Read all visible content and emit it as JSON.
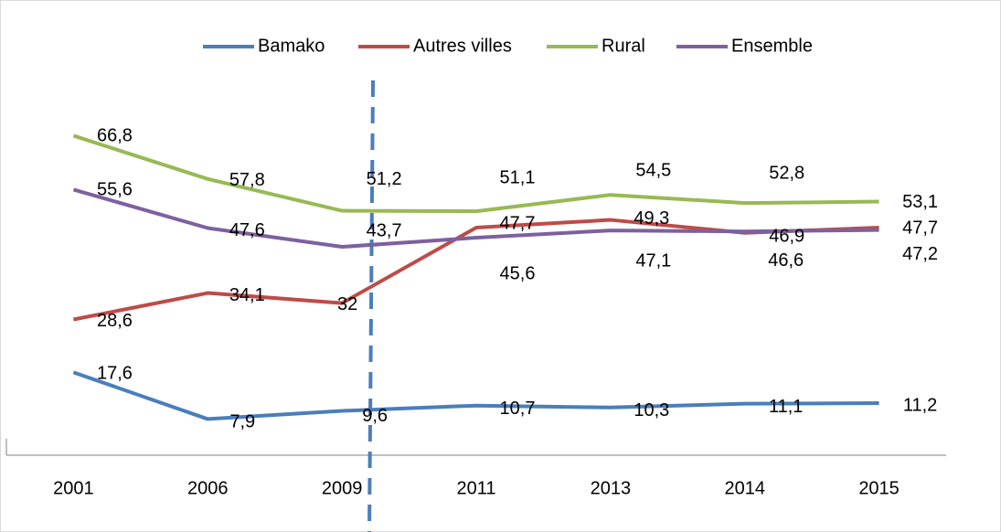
{
  "chart_data": {
    "type": "line",
    "categories": [
      "2001",
      "2006",
      "2009",
      "2011",
      "2013",
      "2014",
      "2015"
    ],
    "series": [
      {
        "name": "Bamako",
        "color": "#4a7ebb",
        "values": [
          17.6,
          7.9,
          9.6,
          10.7,
          10.3,
          11.1,
          11.2
        ],
        "value_labels": [
          "17,6",
          "7,9",
          "9,6",
          "10,7",
          "10,3",
          "11,1",
          "11,2"
        ]
      },
      {
        "name": "Autres villes",
        "color": "#be4b48",
        "values": [
          28.6,
          34.1,
          32,
          47.7,
          49.3,
          46.6,
          47.7
        ],
        "value_labels": [
          "28,6",
          "34,1",
          "32",
          "47,7",
          "49,3",
          "46,6",
          "47,7"
        ]
      },
      {
        "name": "Rural",
        "color": "#98b954",
        "values": [
          66.8,
          57.8,
          51.2,
          51.1,
          54.5,
          52.8,
          53.1
        ],
        "value_labels": [
          "66,8",
          "57,8",
          "51,2",
          "51,1",
          "54,5",
          "52,8",
          "53,1"
        ]
      },
      {
        "name": "Ensemble",
        "color": "#7d60a0",
        "values": [
          55.6,
          47.6,
          43.7,
          45.6,
          47.1,
          46.9,
          47.2
        ],
        "value_labels": [
          "55,6",
          "47,6",
          "43,7",
          "45,6",
          "47,1",
          "46,9",
          "47,2"
        ]
      }
    ],
    "ylim": [
      0,
      80
    ],
    "legend": "top"
  }
}
